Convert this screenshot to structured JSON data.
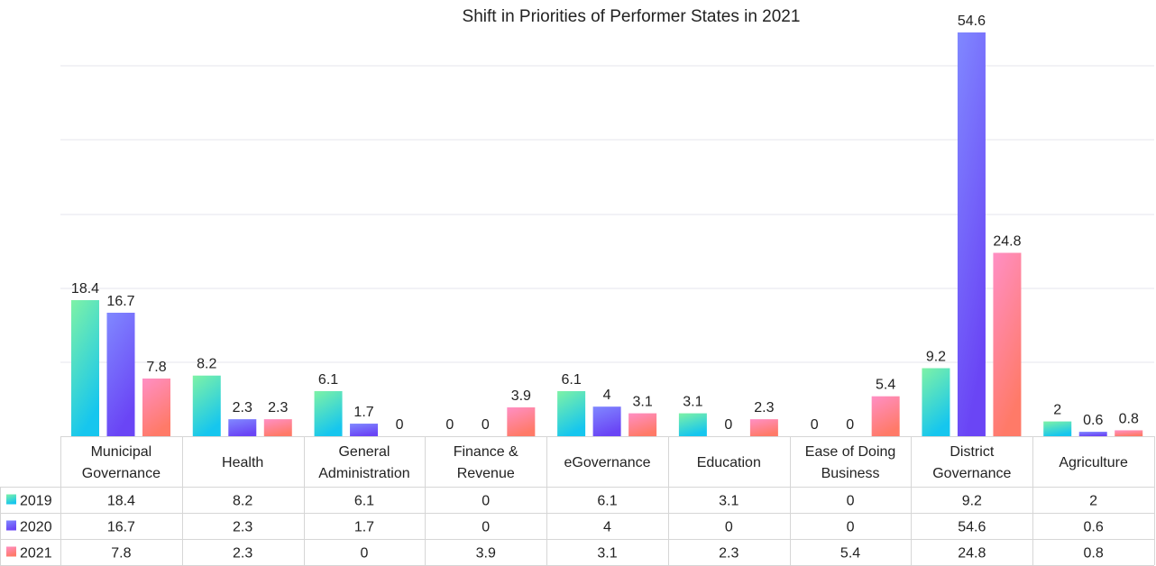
{
  "chart_data": {
    "type": "bar",
    "title": "Shift in Priorities of Performer States in 2021",
    "categories": [
      [
        "Municipal",
        "Governance"
      ],
      [
        "Health"
      ],
      [
        "General",
        "Administration"
      ],
      [
        "Finance &",
        "Revenue"
      ],
      [
        "eGovernance"
      ],
      [
        "Education"
      ],
      [
        "Ease of Doing",
        "Business"
      ],
      [
        "District",
        "Governance"
      ],
      [
        "Agriculture"
      ]
    ],
    "series": [
      {
        "name": "2019",
        "values": [
          18.4,
          8.2,
          6.1,
          0,
          6.1,
          3.1,
          0,
          9.2,
          2
        ],
        "gradient": [
          "#7ef2a6",
          "#16c6ee"
        ]
      },
      {
        "name": "2020",
        "values": [
          16.7,
          2.3,
          1.7,
          0,
          4,
          0,
          0,
          54.6,
          0.6
        ],
        "gradient": [
          "#8088ff",
          "#6a45f5"
        ]
      },
      {
        "name": "2021",
        "values": [
          7.8,
          2.3,
          0,
          3.9,
          3.1,
          2.3,
          5.4,
          24.8,
          0.8
        ],
        "gradient": [
          "#ff8fc4",
          "#ff7a68"
        ]
      }
    ],
    "ylim": [
      0,
      55
    ],
    "grid": true,
    "legend": "data-table"
  }
}
